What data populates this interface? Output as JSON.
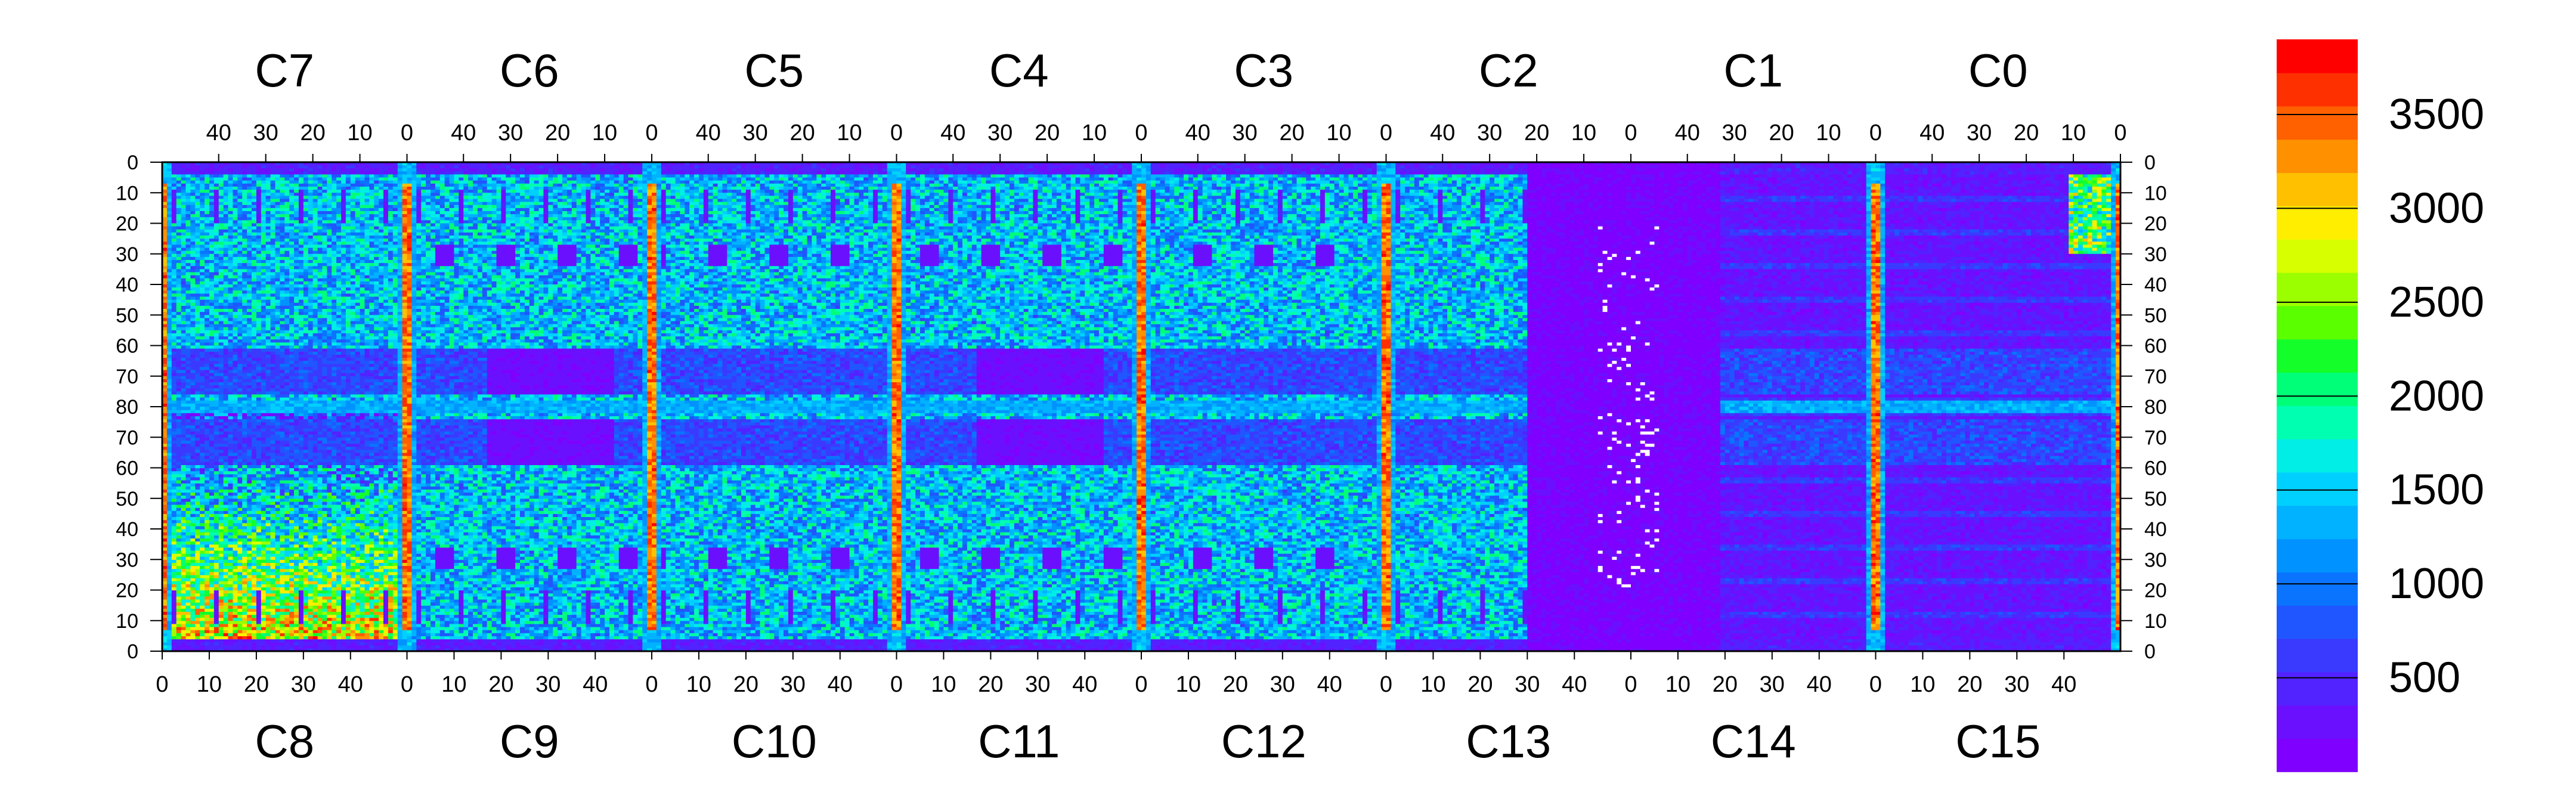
{
  "chart_data": {
    "type": "heatmap",
    "title": "",
    "xlabel": "",
    "ylabel": "",
    "top_chips": [
      "C7",
      "C6",
      "C5",
      "C4",
      "C3",
      "C2",
      "C1",
      "C0"
    ],
    "bottom_chips": [
      "C8",
      "C9",
      "C10",
      "C11",
      "C12",
      "C13",
      "C14",
      "C15"
    ],
    "top_column_ticks": [
      "40",
      "30",
      "20",
      "10",
      "0"
    ],
    "bottom_column_ticks": [
      "0",
      "10",
      "20",
      "30",
      "40"
    ],
    "row_ticks_top_half": [
      "0",
      "10",
      "20",
      "30",
      "40",
      "50",
      "60",
      "70",
      "80"
    ],
    "row_ticks_bottom_half": [
      "70",
      "60",
      "50",
      "40",
      "30",
      "20",
      "10",
      "0"
    ],
    "columns_per_chip": 52,
    "rows_per_half": 80,
    "zlim": [
      0,
      3900
    ],
    "colorbar_ticks": [
      500,
      1000,
      1500,
      2000,
      2500,
      3000,
      3500
    ],
    "colorbar_labels": [
      "500",
      "1000",
      "1500",
      "2000",
      "2500",
      "3000",
      "3500"
    ],
    "colormap": [
      "#7f00ff",
      "#6b10ff",
      "#5222ff",
      "#3a3aff",
      "#2056ff",
      "#0a74ff",
      "#0093ff",
      "#00b2ff",
      "#00d0ff",
      "#00eee6",
      "#00ffb0",
      "#00ff78",
      "#14ff2a",
      "#5aff00",
      "#9cff00",
      "#d8ff00",
      "#ffee00",
      "#ffc000",
      "#ff9000",
      "#ff6000",
      "#ff3000",
      "#ff0000"
    ],
    "grid": false,
    "legend": "colorbar-right",
    "regions": {
      "baseline_low": 200,
      "pixel_average_main": 1400,
      "hot_chip_edge_columns": 3400,
      "mid_row_band": 1300,
      "c8_bottom_left_gradient": 2400,
      "c13_c14_dead_region": 150,
      "c13_c14_masked_pixels": "white"
    }
  }
}
